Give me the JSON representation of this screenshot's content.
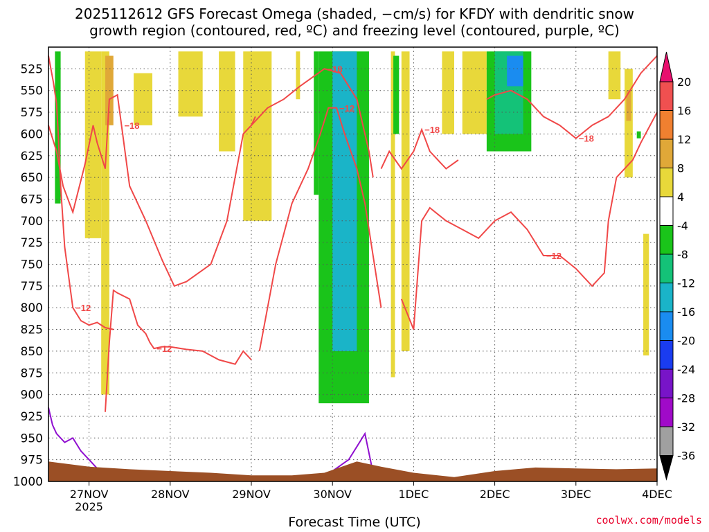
{
  "title_lines": [
    "2025112612 GFS Forecast Omega (shaded, −cm/s) for KFDY with dendritic snow",
    "growth region (contoured, red, ºC) and freezing level (contoured, purple, ºC)"
  ],
  "credit": "coolwx.com/models",
  "chart_data": {
    "type": "heatmap",
    "xlabel": "Forecast Time (UTC)",
    "ylabel": "",
    "x_tick_labels": [
      "27NOV",
      "28NOV",
      "29NOV",
      "30NOV",
      "1DEC",
      "2DEC",
      "3DEC",
      "4DEC"
    ],
    "x_year_label": "2025",
    "x_range_days": [
      26.5,
      34.0
    ],
    "y_tick_labels": [
      525,
      550,
      575,
      600,
      625,
      650,
      675,
      700,
      725,
      750,
      775,
      800,
      825,
      850,
      875,
      900,
      925,
      950,
      975,
      1000
    ],
    "y_range_hpa": [
      500,
      1000
    ],
    "grid": true,
    "colorbar": {
      "labels": [
        "20",
        "16",
        "12",
        "8",
        "4",
        "-4",
        "-8",
        "-12",
        "-16",
        "-20",
        "-24",
        "-28",
        "-32",
        "-36"
      ],
      "colors": [
        "#e8106e",
        "#f05050",
        "#f08030",
        "#e0a838",
        "#e8d83a",
        "#ffffff",
        "#1ac41a",
        "#14c278",
        "#1ab4c8",
        "#1a8cf0",
        "#1a3cf0",
        "#7814c8",
        "#a00ac8",
        "#a0a0a0",
        "#000000"
      ]
    },
    "shading_cm_s": [
      {
        "x": [
          26.58,
          26.65
        ],
        "p": [
          505,
          680
        ],
        "band": "-4 to -8"
      },
      {
        "x": [
          26.95,
          27.15
        ],
        "p": [
          505,
          720
        ],
        "band": "4 to 8"
      },
      {
        "x": [
          27.15,
          27.25
        ],
        "p": [
          505,
          900
        ],
        "band": "4 to 8"
      },
      {
        "x": [
          27.2,
          27.3
        ],
        "p": [
          510,
          590
        ],
        "band": "8 to 12"
      },
      {
        "x": [
          27.55,
          27.78
        ],
        "p": [
          530,
          590
        ],
        "band": "4 to 8"
      },
      {
        "x": [
          28.1,
          28.4
        ],
        "p": [
          505,
          580
        ],
        "band": "4 to 8"
      },
      {
        "x": [
          28.6,
          28.8
        ],
        "p": [
          505,
          620
        ],
        "band": "4 to 8"
      },
      {
        "x": [
          28.9,
          29.25
        ],
        "p": [
          505,
          700
        ],
        "band": "4 to 8"
      },
      {
        "x": [
          29.55,
          29.6
        ],
        "p": [
          505,
          560
        ],
        "band": "4 to 8"
      },
      {
        "x": [
          29.77,
          29.83
        ],
        "p": [
          505,
          670
        ],
        "band": "-4 to -8"
      },
      {
        "x": [
          29.83,
          30.45
        ],
        "p": [
          505,
          910
        ],
        "band": "-4 to -8"
      },
      {
        "x": [
          30.0,
          30.3
        ],
        "p": [
          505,
          850
        ],
        "band": "-12 to -16"
      },
      {
        "x": [
          30.72,
          30.77
        ],
        "p": [
          505,
          880
        ],
        "band": "4 to 8"
      },
      {
        "x": [
          30.75,
          30.82
        ],
        "p": [
          510,
          600
        ],
        "band": "-4 to -8"
      },
      {
        "x": [
          30.85,
          30.95
        ],
        "p": [
          505,
          850
        ],
        "band": "4 to 8"
      },
      {
        "x": [
          31.35,
          31.5
        ],
        "p": [
          505,
          600
        ],
        "band": "4 to 8"
      },
      {
        "x": [
          31.6,
          31.9
        ],
        "p": [
          505,
          600
        ],
        "band": "4 to 8"
      },
      {
        "x": [
          31.9,
          32.45
        ],
        "p": [
          505,
          620
        ],
        "band": "-4 to -8"
      },
      {
        "x": [
          32.0,
          32.35
        ],
        "p": [
          505,
          600
        ],
        "band": "-8 to -12"
      },
      {
        "x": [
          32.15,
          32.35
        ],
        "p": [
          510,
          545
        ],
        "band": "-16 to -20"
      },
      {
        "x": [
          33.4,
          33.55
        ],
        "p": [
          505,
          560
        ],
        "band": "4 to 8"
      },
      {
        "x": [
          33.6,
          33.7
        ],
        "p": [
          525,
          650
        ],
        "band": "4 to 8"
      },
      {
        "x": [
          33.62,
          33.68
        ],
        "p": [
          550,
          585
        ],
        "band": "8 to 12"
      },
      {
        "x": [
          33.75,
          33.8
        ],
        "p": [
          597,
          605
        ],
        "band": "-4 to -8"
      },
      {
        "x": [
          33.83,
          33.9
        ],
        "p": [
          715,
          855
        ],
        "band": "4 to 8"
      }
    ],
    "contours": {
      "dgz_red": {
        "color": "#f04848",
        "lines": [
          {
            "label": "−12",
            "x": [
              26.5,
              26.56,
              26.6,
              26.62,
              26.65,
              26.7,
              26.8,
              26.9,
              27.0,
              27.1,
              27.2,
              27.3
            ],
            "p": [
              510,
              540,
              565,
              600,
              660,
              730,
              800,
              815,
              820,
              817,
              823,
              825
            ]
          },
          {
            "label": "−12",
            "x": [
              27.2,
              27.25,
              27.3,
              27.35,
              27.5,
              27.6,
              27.7,
              27.75,
              27.8,
              27.9,
              28.0,
              28.2,
              28.4,
              28.6,
              28.8,
              28.9,
              29.0
            ],
            "p": [
              920,
              840,
              780,
              783,
              790,
              820,
              830,
              840,
              847,
              845,
              845,
              848,
              850,
              860,
              865,
              850,
              860
            ]
          },
          {
            "label": "−18",
            "x": [
              26.5,
              26.6,
              26.68,
              26.8,
              26.95,
              27.05,
              27.1,
              27.2,
              27.25,
              27.35,
              27.4,
              27.5,
              27.7,
              27.9,
              28.05,
              28.2,
              28.5,
              28.7,
              28.9,
              29.0,
              29.05
            ],
            "p": [
              590,
              620,
              660,
              690,
              635,
              590,
              610,
              640,
              560,
              555,
              590,
              660,
              700,
              745,
              775,
              770,
              750,
              700,
              600,
              590,
              580
            ]
          },
          {
            "label": "−18",
            "x": [
              29.0,
              29.2,
              29.4,
              29.6,
              29.9,
              30.1,
              30.3,
              30.45,
              30.5
            ],
            "p": [
              590,
              570,
              560,
              545,
              525,
              530,
              560,
              620,
              650
            ]
          },
          {
            "label": "−12",
            "x": [
              29.1,
              29.3,
              29.5,
              29.7,
              29.85,
              29.95,
              30.05,
              30.15,
              30.3,
              30.4,
              30.5,
              30.6
            ],
            "p": [
              850,
              750,
              680,
              640,
              600,
              570,
              570,
              600,
              640,
              680,
              740,
              800
            ]
          },
          {
            "label": "−18",
            "x": [
              30.6,
              30.7,
              30.85,
              31.0,
              31.1,
              31.2,
              31.4,
              31.55
            ],
            "p": [
              640,
              620,
              640,
              620,
              595,
              620,
              640,
              630
            ]
          },
          {
            "label": "−12",
            "x": [
              30.85,
              31.0,
              31.1,
              31.2,
              31.4,
              31.6,
              31.8,
              32.0,
              32.2,
              32.4,
              32.6,
              32.8,
              33.0,
              33.2,
              33.35,
              33.4,
              33.5,
              33.6,
              33.7,
              33.8,
              34.0
            ],
            "p": [
              790,
              825,
              700,
              685,
              700,
              710,
              720,
              700,
              690,
              710,
              740,
              740,
              755,
              775,
              760,
              700,
              650,
              640,
              630,
              610,
              575
            ]
          },
          {
            "label": "−18",
            "x": [
              31.9,
              32.0,
              32.2,
              32.4,
              32.6,
              32.8,
              33.0,
              33.2,
              33.4,
              33.6,
              33.8,
              34.0
            ],
            "p": [
              560,
              555,
              550,
              560,
              580,
              590,
              605,
              590,
              580,
              560,
              530,
              510
            ]
          }
        ]
      },
      "freezing_purple": {
        "color": "#9010d0",
        "lines": [
          {
            "x": [
              26.5,
              26.55,
              26.6,
              26.7,
              26.8,
              26.9,
              27.0,
              27.1
            ],
            "p": [
              915,
              935,
              945,
              955,
              950,
              965,
              975,
              985
            ]
          },
          {
            "x": [
              29.85,
              30.2,
              30.3,
              30.4,
              30.5
            ],
            "p": [
              998,
              975,
              960,
              945,
              990
            ]
          }
        ]
      }
    },
    "terrain_color": "#9b4f25"
  }
}
